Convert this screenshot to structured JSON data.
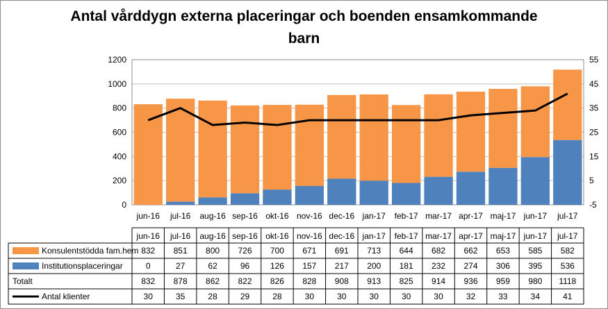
{
  "chart_data": {
    "type": "bar",
    "title_line1": "Antal vårddygn externa placeringar och boenden ensamkommande",
    "title_line2": "barn",
    "categories": [
      "jun-16",
      "jul-16",
      "aug-16",
      "sep-16",
      "okt-16",
      "nov-16",
      "dec-16",
      "jan-17",
      "feb-17",
      "mar-17",
      "apr-17",
      "maj-17",
      "jun-17",
      "jul-17"
    ],
    "series": [
      {
        "name": "Konsulentstödda fam.hem",
        "color": "#f79646",
        "values": [
          832,
          851,
          800,
          726,
          700,
          671,
          691,
          713,
          644,
          682,
          662,
          653,
          585,
          582
        ]
      },
      {
        "name": "Institutionsplaceringar",
        "color": "#4f81bd",
        "values": [
          0,
          27,
          62,
          96,
          126,
          157,
          217,
          200,
          181,
          232,
          274,
          306,
          395,
          536
        ]
      },
      {
        "name": "Antal klienter",
        "color": "#000000",
        "type": "line",
        "axis": "right",
        "values": [
          30,
          35,
          28,
          29,
          28,
          30,
          30,
          30,
          30,
          30,
          32,
          33,
          34,
          41
        ]
      }
    ],
    "total_label": "Totalt",
    "totals": [
      832,
      878,
      862,
      822,
      826,
      828,
      908,
      913,
      825,
      914,
      936,
      959,
      980,
      1118
    ],
    "stacked": true,
    "ylim": [
      0,
      1200
    ],
    "y_ticks": [
      0,
      200,
      400,
      600,
      800,
      1000,
      1200
    ],
    "y2lim": [
      -5,
      55
    ],
    "y2_ticks": [
      -5,
      5,
      15,
      25,
      35,
      45,
      55
    ],
    "grid": true,
    "legend": "data-table"
  }
}
